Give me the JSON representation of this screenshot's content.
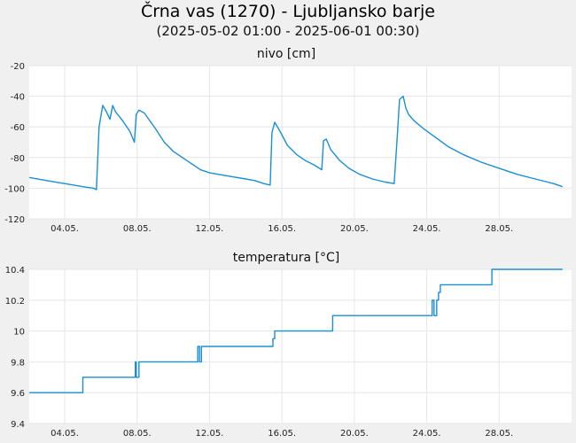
{
  "title": "Črna vas (1270) - Ljubljansko barje",
  "subtitle": "(2025-05-02 01:00 - 2025-06-01 00:30)",
  "line_color": "#1a8fd4",
  "chart_data": [
    {
      "type": "line",
      "title": "nivo [cm]",
      "x_tick_labels": [
        "04.05.",
        "08.05.",
        "12.05.",
        "16.05.",
        "20.05.",
        "24.05.",
        "28.05."
      ],
      "x_tick_days": [
        4,
        8,
        12,
        16,
        20,
        24,
        28
      ],
      "xlim": [
        2.04,
        32.0
      ],
      "ylim": [
        -120,
        -20
      ],
      "y_ticks": [
        -120,
        -100,
        -80,
        -60,
        -40,
        -20
      ],
      "y_tick_labels": [
        "-120",
        "-100",
        "-80",
        "-60",
        "-40",
        "-20"
      ],
      "grid": true,
      "series": [
        {
          "x": [
            2.04,
            3.0,
            4.0,
            5.0,
            5.6,
            5.75,
            5.9,
            6.1,
            6.3,
            6.5,
            6.65,
            6.8,
            7.2,
            7.6,
            7.85,
            7.95,
            8.1,
            8.4,
            9.0,
            9.5,
            10.0,
            10.5,
            11.0,
            11.5,
            12.0,
            12.5,
            13.0,
            14.0,
            14.5,
            15.0,
            15.35,
            15.45,
            15.6,
            15.9,
            16.3,
            16.8,
            17.3,
            17.8,
            18.2,
            18.3,
            18.45,
            18.7,
            19.2,
            19.7,
            20.3,
            21.0,
            21.7,
            22.2,
            22.35,
            22.5,
            22.7,
            22.85,
            23.0,
            23.3,
            23.8,
            24.5,
            25.2,
            26.0,
            27.0,
            28.0,
            29.0,
            30.0,
            31.0,
            31.5
          ],
          "y": [
            -93,
            -95,
            -97,
            -99,
            -100,
            -101,
            -60,
            -46,
            -50,
            -55,
            -46,
            -50,
            -56,
            -63,
            -70,
            -52,
            -49,
            -51,
            -61,
            -70,
            -76,
            -80,
            -84,
            -88,
            -90,
            -91,
            -92,
            -94,
            -95,
            -97,
            -98,
            -64,
            -57,
            -63,
            -72,
            -78,
            -82,
            -85,
            -88,
            -69,
            -68,
            -75,
            -82,
            -87,
            -91,
            -94,
            -96,
            -97,
            -70,
            -42,
            -40,
            -48,
            -52,
            -56,
            -61,
            -67,
            -73,
            -78,
            -83,
            -87,
            -91,
            -94,
            -97,
            -99
          ]
        }
      ]
    },
    {
      "type": "line",
      "title": "temperatura [°C]",
      "x_tick_labels": [
        "04.05.",
        "08.05.",
        "12.05.",
        "16.05.",
        "20.05.",
        "24.05.",
        "28.05."
      ],
      "x_tick_days": [
        4,
        8,
        12,
        16,
        20,
        24,
        28
      ],
      "xlim": [
        2.04,
        32.0
      ],
      "ylim": [
        9.4,
        10.4
      ],
      "y_ticks": [
        9.4,
        9.6,
        9.8,
        10.0,
        10.2,
        10.4
      ],
      "y_tick_labels": [
        "9.4",
        "9.6",
        "9.8",
        "10",
        "10.2",
        "10.4"
      ],
      "grid": true,
      "series": [
        {
          "x": [
            2.04,
            5.0,
            5.0,
            7.9,
            7.9,
            7.95,
            7.95,
            8.1,
            8.1,
            8.2,
            8.2,
            11.35,
            11.35,
            11.45,
            11.45,
            11.55,
            11.55,
            15.5,
            15.5,
            15.6,
            15.6,
            18.8,
            18.8,
            24.3,
            24.3,
            24.4,
            24.4,
            24.55,
            24.55,
            24.65,
            24.65,
            24.75,
            24.75,
            27.6,
            27.6,
            31.5
          ],
          "y": [
            9.6,
            9.6,
            9.7,
            9.7,
            9.8,
            9.8,
            9.7,
            9.7,
            9.8,
            9.8,
            9.8,
            9.8,
            9.9,
            9.9,
            9.8,
            9.8,
            9.9,
            9.9,
            9.95,
            9.95,
            10.0,
            10.0,
            10.1,
            10.1,
            10.2,
            10.2,
            10.1,
            10.1,
            10.2,
            10.2,
            10.25,
            10.25,
            10.3,
            10.3,
            10.4,
            10.4
          ]
        }
      ]
    }
  ]
}
